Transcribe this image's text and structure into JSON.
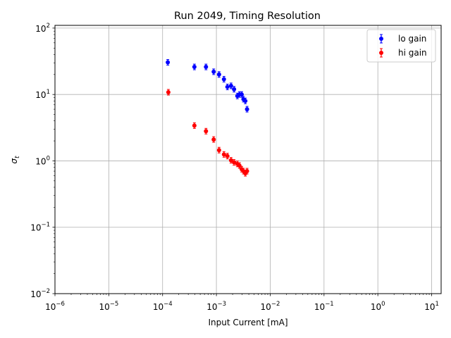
{
  "chart_data": {
    "type": "scatter",
    "title": "Run 2049, Timing Resolution",
    "xlabel": "Input Current [mA]",
    "ylabel": "σ",
    "ylabel_sub": "t",
    "xscale": "log",
    "yscale": "log",
    "xlim": [
      1e-06,
      15
    ],
    "ylim": [
      0.01,
      110
    ],
    "grid": true,
    "legend_position": "top-right",
    "x_ticks": [
      {
        "base": "10",
        "exp": "−6"
      },
      {
        "base": "10",
        "exp": "−5"
      },
      {
        "base": "10",
        "exp": "−4"
      },
      {
        "base": "10",
        "exp": "−3"
      },
      {
        "base": "10",
        "exp": "−2"
      },
      {
        "base": "10",
        "exp": "−1"
      },
      {
        "base": "10",
        "exp": "0"
      },
      {
        "base": "10",
        "exp": "1"
      }
    ],
    "y_ticks": [
      {
        "base": "10",
        "exp": "−2"
      },
      {
        "base": "10",
        "exp": "−1"
      },
      {
        "base": "10",
        "exp": "0"
      },
      {
        "base": "10",
        "exp": "1"
      },
      {
        "base": "10",
        "exp": "2"
      }
    ],
    "series": [
      {
        "name": "lo gain",
        "color": "#0000ff",
        "x": [
          0.000125,
          0.00039,
          0.00064,
          0.00089,
          0.00112,
          0.00138,
          0.0016,
          0.00187,
          0.00213,
          0.00245,
          0.00268,
          0.00295,
          0.00318,
          0.00345,
          0.00371
        ],
        "y": [
          30.5,
          26.0,
          26.0,
          22.0,
          20.0,
          17.0,
          13.0,
          13.5,
          12.0,
          9.5,
          10.0,
          10.0,
          8.5,
          8.0,
          6.0
        ]
      },
      {
        "name": "hi gain",
        "color": "#ff0000",
        "x": [
          0.000128,
          0.00039,
          0.00064,
          0.00089,
          0.00112,
          0.00138,
          0.0016,
          0.00187,
          0.00213,
          0.00245,
          0.00268,
          0.00295,
          0.00318,
          0.00345,
          0.00371
        ],
        "y": [
          10.8,
          3.4,
          2.8,
          2.1,
          1.45,
          1.25,
          1.18,
          1.02,
          0.95,
          0.9,
          0.85,
          0.75,
          0.7,
          0.65,
          0.7
        ]
      }
    ]
  }
}
